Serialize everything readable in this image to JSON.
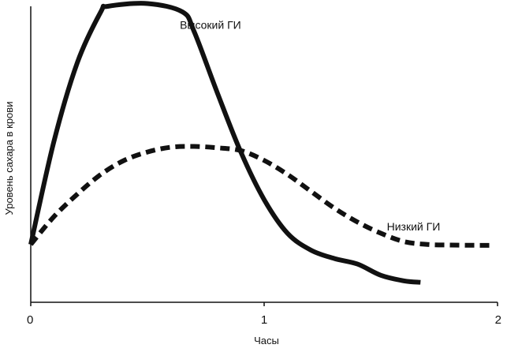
{
  "chart_data": {
    "type": "line",
    "title": "",
    "xlabel": "Часы",
    "ylabel": "Уровень сахара в крови",
    "xlim": [
      0,
      2
    ],
    "ylim": [
      0,
      100
    ],
    "x_ticks": [
      "0",
      "1",
      "2"
    ],
    "grid": false,
    "legend": "inline labels",
    "series": [
      {
        "name": "Высокий ГИ",
        "style": "solid",
        "color": "#111111",
        "x": [
          0,
          0.1,
          0.2,
          0.3,
          0.33,
          0.5,
          0.65,
          0.7,
          0.8,
          0.9,
          1.0,
          1.1,
          1.2,
          1.3,
          1.4,
          1.5,
          1.6,
          1.67
        ],
        "y": [
          15,
          52,
          80,
          98,
          100,
          101,
          98,
          91,
          69,
          48,
          31,
          19,
          13,
          10,
          8,
          4,
          2,
          1.5
        ]
      },
      {
        "name": "Низкий ГИ",
        "style": "dashed",
        "color": "#111111",
        "x": [
          0,
          0.1,
          0.2,
          0.3,
          0.4,
          0.5,
          0.6,
          0.7,
          0.8,
          0.9,
          1.0,
          1.1,
          1.2,
          1.3,
          1.4,
          1.5,
          1.6,
          1.7,
          1.8,
          1.9,
          1.97
        ],
        "y": [
          15,
          25,
          33,
          40,
          45,
          48,
          49.7,
          50,
          49.5,
          48.5,
          45,
          40,
          34,
          28,
          23,
          19,
          16,
          15,
          14.8,
          14.7,
          14.7
        ]
      }
    ]
  }
}
